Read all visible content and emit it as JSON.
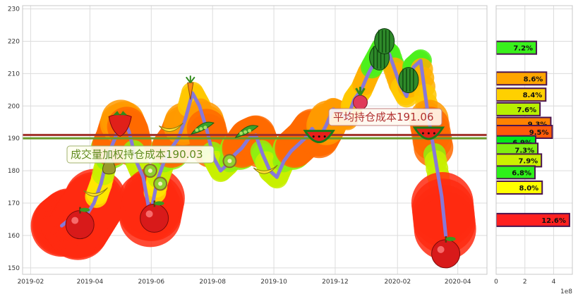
{
  "chart_data": [
    {
      "type": "line",
      "title": "",
      "x_tick_labels": [
        "2019-02",
        "2019-04",
        "2019-06",
        "2019-08",
        "2019-10",
        "2019-12",
        "2020-02",
        "2020-04"
      ],
      "y_tick_labels": [
        "150",
        "160",
        "170",
        "180",
        "190",
        "200",
        "210",
        "220",
        "230"
      ],
      "ylim": [
        148,
        231
      ],
      "xlim": [
        "2019-01-24",
        "2020-04-30"
      ],
      "grid": true,
      "series": [
        {
          "color": "#8878d8",
          "points": [
            [
              "2019-03-04",
              163
            ],
            [
              "2019-03-12",
              165
            ],
            [
              "2019-03-20",
              162
            ],
            [
              "2019-03-28",
              166
            ],
            [
              "2019-04-05",
              170
            ],
            [
              "2019-04-12",
              176
            ],
            [
              "2019-04-19",
              185
            ],
            [
              "2019-04-26",
              190
            ],
            [
              "2019-05-03",
              197
            ],
            [
              "2019-05-10",
              192
            ],
            [
              "2019-05-17",
              183
            ],
            [
              "2019-05-24",
              178
            ],
            [
              "2019-05-31",
              166
            ],
            [
              "2019-06-07",
              177
            ],
            [
              "2019-06-14",
              183
            ],
            [
              "2019-06-21",
              187
            ],
            [
              "2019-06-28",
              190
            ],
            [
              "2019-07-05",
              196
            ],
            [
              "2019-07-12",
              204
            ],
            [
              "2019-07-19",
              200
            ],
            [
              "2019-07-26",
              193
            ],
            [
              "2019-08-02",
              184
            ],
            [
              "2019-08-09",
              180
            ],
            [
              "2019-08-16",
              182
            ],
            [
              "2019-08-23",
              185
            ],
            [
              "2019-08-30",
              187
            ],
            [
              "2019-09-06",
              190
            ],
            [
              "2019-09-13",
              191
            ],
            [
              "2019-09-20",
              185
            ],
            [
              "2019-09-27",
              180
            ],
            [
              "2019-10-04",
              178
            ],
            [
              "2019-10-11",
              183
            ],
            [
              "2019-10-18",
              186
            ],
            [
              "2019-10-25",
              188
            ],
            [
              "2019-11-01",
              190
            ],
            [
              "2019-11-08",
              193
            ],
            [
              "2019-11-15",
              190
            ],
            [
              "2019-11-22",
              194
            ],
            [
              "2019-11-29",
              199
            ],
            [
              "2019-12-06",
              198
            ],
            [
              "2019-12-13",
              196
            ],
            [
              "2019-12-20",
              202
            ],
            [
              "2019-12-27",
              205
            ],
            [
              "2020-01-03",
              210
            ],
            [
              "2020-01-10",
              214
            ],
            [
              "2020-01-17",
              218
            ],
            [
              "2020-01-24",
              216
            ],
            [
              "2020-02-03",
              207
            ],
            [
              "2020-02-10",
              203
            ],
            [
              "2020-02-17",
              212
            ],
            [
              "2020-02-24",
              214
            ],
            [
              "2020-03-02",
              198
            ],
            [
              "2020-03-09",
              185
            ],
            [
              "2020-03-16",
              172
            ],
            [
              "2020-03-20",
              160
            ]
          ]
        }
      ],
      "annotations": [
        {
          "text": "平均持仓成本191.06",
          "color": "#b03030"
        },
        {
          "text": "成交量加权持仓成本190.03",
          "color": "#5f8a1e"
        }
      ],
      "reference_lines": [
        {
          "value": 191.06,
          "color": "#a0302a"
        },
        {
          "value": 190.03,
          "color": "#6a9a2a"
        }
      ],
      "fruit_markers": [
        {
          "date": "2019-03-22",
          "value": 164,
          "icon": "apple-icon"
        },
        {
          "date": "2019-04-06",
          "value": 173,
          "icon": "banana-icon"
        },
        {
          "date": "2019-04-20",
          "value": 182,
          "icon": "pear-icon"
        },
        {
          "date": "2019-05-01",
          "value": 195,
          "icon": "strawberry-icon"
        },
        {
          "date": "2019-05-31",
          "value": 180,
          "icon": "kiwi-icon"
        },
        {
          "date": "2019-06-04",
          "value": 166,
          "icon": "apple-icon"
        },
        {
          "date": "2019-06-10",
          "value": 176,
          "icon": "kiwi-icon"
        },
        {
          "date": "2019-06-20",
          "value": 193,
          "icon": "banana-icon"
        },
        {
          "date": "2019-07-10",
          "value": 205,
          "icon": "carrot-icon"
        },
        {
          "date": "2019-07-22",
          "value": 193,
          "icon": "peapod-icon"
        },
        {
          "date": "2019-08-18",
          "value": 183,
          "icon": "kiwi-icon"
        },
        {
          "date": "2019-09-04",
          "value": 192,
          "icon": "peapod-icon"
        },
        {
          "date": "2019-09-22",
          "value": 180,
          "icon": "banana-icon"
        },
        {
          "date": "2019-11-15",
          "value": 191,
          "icon": "watermelon-icon"
        },
        {
          "date": "2019-12-26",
          "value": 202,
          "icon": "radish-icon"
        },
        {
          "date": "2020-01-14",
          "value": 215,
          "icon": "watermelon-icon"
        },
        {
          "date": "2020-01-19",
          "value": 220,
          "icon": "watermelon-icon"
        },
        {
          "date": "2020-02-12",
          "value": 208,
          "icon": "watermelon-icon"
        },
        {
          "date": "2020-03-03",
          "value": 192,
          "icon": "watermelon-icon"
        },
        {
          "date": "2020-03-20",
          "value": 155,
          "icon": "apple-icon"
        }
      ]
    },
    {
      "type": "bar",
      "orientation": "horizontal",
      "x_tick_labels": [
        "0",
        "2",
        "4"
      ],
      "x_offset_label": "1e8",
      "xlim": [
        0,
        5.3
      ],
      "ylim": [
        148,
        231
      ],
      "bars": [
        {
          "price": 218,
          "value": 2.8,
          "label": "7.2%",
          "color": "#39f01c"
        },
        {
          "price": 208.5,
          "value": 3.5,
          "label": "8.6%",
          "color": "#ffa500"
        },
        {
          "price": 203.5,
          "value": 3.45,
          "label": "8.4%",
          "color": "#ffd000"
        },
        {
          "price": 199,
          "value": 3.05,
          "label": "7.6%",
          "color": "#b8f000"
        },
        {
          "price": 194.5,
          "value": 3.8,
          "label": "9.3%",
          "color": "#ff8200"
        },
        {
          "price": 192,
          "value": 3.9,
          "label": "9.5%",
          "color": "#ff5a0a"
        },
        {
          "price": 188.8,
          "value": 2.75,
          "label": "6.9%",
          "color": "#00e81c"
        },
        {
          "price": 186.5,
          "value": 2.9,
          "label": "7.3%",
          "color": "#7fef10"
        },
        {
          "price": 183.2,
          "value": 3.15,
          "label": "7.9%",
          "color": "#ccf000"
        },
        {
          "price": 179.5,
          "value": 2.7,
          "label": "6.8%",
          "color": "#2ef01a"
        },
        {
          "price": 174.8,
          "value": 3.2,
          "label": "8.0%",
          "color": "#ffff00"
        },
        {
          "price": 164.8,
          "value": 5.1,
          "label": "12.6%",
          "color": "#ff2020"
        }
      ]
    }
  ]
}
